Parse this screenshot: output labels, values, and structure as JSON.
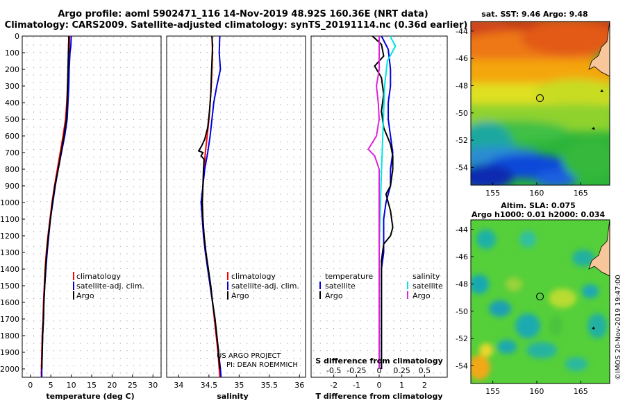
{
  "header": {
    "title_line1": "Argo profile: aoml 5902471_116 14-Nov-2019 48.92S 160.36E (NRT data)",
    "title_line2": "Climatology: CARS2009. Satellite-adjusted climatology: synTS_20191114.nc (0.36d earlier)"
  },
  "colors": {
    "climatology": "#ff0000",
    "satellite": "#0000dd",
    "argo": "#000000",
    "sal_satellite": "#00e5e5",
    "sal_argo": "#dd22dd"
  },
  "depth_axis": {
    "ticks": [
      "0",
      "100",
      "200",
      "300",
      "400",
      "500",
      "600",
      "700",
      "800",
      "900",
      "1000",
      "1100",
      "1200",
      "1300",
      "1400",
      "1500",
      "1600",
      "1700",
      "1800",
      "1900",
      "2000"
    ]
  },
  "chart_data": [
    {
      "type": "line",
      "name": "temperature",
      "xlabel": "temperature (deg C)",
      "xlim": [
        -2,
        32
      ],
      "ylim": [
        2050,
        0
      ],
      "xticks": [
        "0",
        "5",
        "10",
        "15",
        "20",
        "25",
        "30"
      ],
      "xtick_values": [
        0,
        5,
        10,
        15,
        20,
        25,
        30
      ],
      "legend": [
        "climatology",
        "satellite-adj. clim.",
        "Argo"
      ],
      "series": [
        {
          "name": "climatology",
          "color_key": "climatology",
          "points": [
            [
              9.6,
              0
            ],
            [
              9.5,
              100
            ],
            [
              9.3,
              200
            ],
            [
              9.1,
              300
            ],
            [
              8.9,
              400
            ],
            [
              8.6,
              500
            ],
            [
              8.0,
              600
            ],
            [
              7.3,
              700
            ],
            [
              6.6,
              800
            ],
            [
              5.9,
              900
            ],
            [
              5.3,
              1000
            ],
            [
              4.8,
              1100
            ],
            [
              4.3,
              1200
            ],
            [
              3.9,
              1300
            ],
            [
              3.6,
              1400
            ],
            [
              3.4,
              1500
            ],
            [
              3.2,
              1600
            ],
            [
              3.1,
              1700
            ],
            [
              2.9,
              1800
            ],
            [
              2.8,
              1900
            ],
            [
              2.7,
              2000
            ],
            [
              2.7,
              2050
            ]
          ]
        },
        {
          "name": "satellite-adj. clim.",
          "color_key": "satellite",
          "points": [
            [
              10.0,
              0
            ],
            [
              9.9,
              60
            ],
            [
              9.7,
              100
            ],
            [
              9.5,
              200
            ],
            [
              9.4,
              300
            ],
            [
              9.2,
              400
            ],
            [
              9.0,
              500
            ],
            [
              8.4,
              600
            ],
            [
              7.6,
              700
            ],
            [
              6.8,
              800
            ],
            [
              6.1,
              900
            ],
            [
              5.5,
              1000
            ],
            [
              4.9,
              1100
            ],
            [
              4.5,
              1200
            ],
            [
              4.1,
              1300
            ],
            [
              3.8,
              1400
            ],
            [
              3.5,
              1500
            ],
            [
              3.3,
              1600
            ],
            [
              3.2,
              1700
            ],
            [
              3.0,
              1800
            ],
            [
              2.9,
              1900
            ],
            [
              2.8,
              2000
            ],
            [
              2.8,
              2050
            ]
          ]
        },
        {
          "name": "Argo",
          "color_key": "argo",
          "points": [
            [
              9.4,
              0
            ],
            [
              9.3,
              100
            ],
            [
              9.2,
              200
            ],
            [
              9.1,
              300
            ],
            [
              9.0,
              400
            ],
            [
              8.8,
              500
            ],
            [
              8.2,
              600
            ],
            [
              7.5,
              700
            ],
            [
              6.8,
              800
            ],
            [
              6.0,
              900
            ],
            [
              5.4,
              1000
            ],
            [
              4.9,
              1100
            ],
            [
              4.4,
              1200
            ],
            [
              4.0,
              1300
            ],
            [
              3.7,
              1400
            ],
            [
              3.5,
              1500
            ],
            [
              3.3,
              1600
            ],
            [
              3.2,
              1700
            ],
            [
              3.0,
              1800
            ],
            [
              2.9,
              1900
            ],
            [
              2.8,
              2000
            ]
          ]
        }
      ]
    },
    {
      "type": "line",
      "name": "salinity",
      "xlabel": "salinity",
      "xlim": [
        33.8,
        36.1
      ],
      "ylim": [
        2050,
        0
      ],
      "xticks": [
        "34",
        "34.5",
        "35",
        "35.5",
        "36"
      ],
      "xtick_values": [
        34,
        34.5,
        35,
        35.5,
        36
      ],
      "legend": [
        "climatology",
        "satellite-adj. clim.",
        "Argo"
      ],
      "credit_line1": "US ARGO PROJECT",
      "credit_line2": "PI: DEAN ROEMMICH",
      "series": [
        {
          "name": "climatology",
          "color_key": "climatology",
          "points": [
            [
              34.55,
              0
            ],
            [
              34.56,
              100
            ],
            [
              34.55,
              200
            ],
            [
              34.54,
              300
            ],
            [
              34.52,
              400
            ],
            [
              34.5,
              500
            ],
            [
              34.47,
              600
            ],
            [
              34.44,
              700
            ],
            [
              34.42,
              800
            ],
            [
              34.4,
              900
            ],
            [
              34.39,
              1000
            ],
            [
              34.4,
              1100
            ],
            [
              34.42,
              1200
            ],
            [
              34.45,
              1300
            ],
            [
              34.49,
              1400
            ],
            [
              34.52,
              1500
            ],
            [
              34.56,
              1600
            ],
            [
              34.59,
              1700
            ],
            [
              34.62,
              1800
            ],
            [
              34.65,
              1900
            ],
            [
              34.67,
              2000
            ],
            [
              34.68,
              2050
            ]
          ]
        },
        {
          "name": "satellite-adj. clim.",
          "color_key": "satellite",
          "points": [
            [
              34.68,
              0
            ],
            [
              34.67,
              100
            ],
            [
              34.69,
              200
            ],
            [
              34.63,
              300
            ],
            [
              34.58,
              400
            ],
            [
              34.55,
              500
            ],
            [
              34.52,
              600
            ],
            [
              34.48,
              700
            ],
            [
              34.43,
              800
            ],
            [
              34.4,
              900
            ],
            [
              34.37,
              1000
            ],
            [
              34.39,
              1100
            ],
            [
              34.41,
              1200
            ],
            [
              34.44,
              1300
            ],
            [
              34.48,
              1400
            ],
            [
              34.52,
              1500
            ],
            [
              34.56,
              1600
            ],
            [
              34.6,
              1700
            ],
            [
              34.63,
              1800
            ],
            [
              34.66,
              1900
            ],
            [
              34.69,
              2000
            ],
            [
              34.7,
              2050
            ]
          ]
        },
        {
          "name": "Argo",
          "color_key": "argo",
          "points": [
            [
              34.55,
              0
            ],
            [
              34.56,
              60
            ],
            [
              34.55,
              150
            ],
            [
              34.54,
              250
            ],
            [
              34.53,
              350
            ],
            [
              34.51,
              450
            ],
            [
              34.48,
              550
            ],
            [
              34.43,
              620
            ],
            [
              34.38,
              660
            ],
            [
              34.33,
              690
            ],
            [
              34.4,
              700
            ],
            [
              34.37,
              720
            ],
            [
              34.42,
              740
            ],
            [
              34.41,
              800
            ],
            [
              34.4,
              900
            ],
            [
              34.39,
              1000
            ],
            [
              34.4,
              1100
            ],
            [
              34.42,
              1200
            ],
            [
              34.45,
              1300
            ],
            [
              34.49,
              1400
            ],
            [
              34.53,
              1500
            ],
            [
              34.56,
              1600
            ],
            [
              34.6,
              1700
            ],
            [
              34.63,
              1800
            ],
            [
              34.66,
              1900
            ],
            [
              34.68,
              2000
            ]
          ]
        }
      ]
    },
    {
      "type": "line",
      "name": "difference",
      "xlabel": "T difference from climatology",
      "xlim": [
        -3,
        3
      ],
      "ylim": [
        2050,
        0
      ],
      "xticks": [
        "-2",
        "-1",
        "0",
        "1",
        "2"
      ],
      "xtick_values": [
        -2,
        -1,
        0,
        1,
        2
      ],
      "sxlabel": "S difference from climatology",
      "sxticks": [
        "-0.5",
        "-0.25",
        "0",
        "0.25",
        "0.5"
      ],
      "sxtick_values": [
        -0.5,
        -0.25,
        0,
        0.25,
        0.5
      ],
      "legend_temp_title": "temperature",
      "legend_sal_title": "salinity",
      "legend_temp": [
        "satellite",
        "Argo"
      ],
      "legend_sal": [
        "satellite",
        "Argo"
      ],
      "series": [
        {
          "name": "T satellite",
          "color_key": "satellite",
          "points": [
            [
              0.1,
              0
            ],
            [
              0.4,
              80
            ],
            [
              0.5,
              200
            ],
            [
              0.5,
              300
            ],
            [
              0.4,
              400
            ],
            [
              0.4,
              500
            ],
            [
              0.5,
              600
            ],
            [
              0.6,
              700
            ],
            [
              0.5,
              800
            ],
            [
              0.5,
              900
            ],
            [
              0.3,
              1000
            ],
            [
              0.2,
              1100
            ],
            [
              0.2,
              1200
            ],
            [
              0.2,
              1300
            ],
            [
              0.1,
              1400
            ],
            [
              0.1,
              1500
            ],
            [
              0.1,
              1600
            ],
            [
              0.1,
              1700
            ],
            [
              0.1,
              1800
            ],
            [
              0.1,
              1900
            ],
            [
              0.1,
              2000
            ]
          ]
        },
        {
          "name": "T Argo",
          "color_key": "argo",
          "points": [
            [
              -0.3,
              0
            ],
            [
              0.1,
              50
            ],
            [
              0.2,
              120
            ],
            [
              -0.2,
              180
            ],
            [
              0.1,
              250
            ],
            [
              0.2,
              350
            ],
            [
              0.1,
              450
            ],
            [
              0.2,
              550
            ],
            [
              0.5,
              650
            ],
            [
              0.6,
              720
            ],
            [
              0.6,
              800
            ],
            [
              0.5,
              900
            ],
            [
              0.3,
              950
            ],
            [
              0.5,
              1050
            ],
            [
              0.6,
              1150
            ],
            [
              0.5,
              1200
            ],
            [
              0.2,
              1250
            ],
            [
              0.1,
              1350
            ],
            [
              0.1,
              1450
            ],
            [
              0.1,
              1600
            ],
            [
              0.1,
              1800
            ],
            [
              0.1,
              2000
            ]
          ]
        },
        {
          "name": "S satellite",
          "color_key": "sal_satellite",
          "points": [
            [
              0.12,
              0
            ],
            [
              0.18,
              60
            ],
            [
              0.09,
              150
            ],
            [
              0.06,
              300
            ],
            [
              0.05,
              450
            ],
            [
              0.04,
              600
            ],
            [
              0.03,
              750
            ],
            [
              0.02,
              900
            ],
            [
              0.01,
              1100
            ],
            [
              0.0,
              1300
            ],
            [
              0.0,
              1500
            ],
            [
              0.0,
              1700
            ],
            [
              0.0,
              1900
            ],
            [
              0.0,
              2000
            ]
          ]
        },
        {
          "name": "S Argo",
          "color_key": "sal_argo",
          "points": [
            [
              0.0,
              0
            ],
            [
              0.0,
              100
            ],
            [
              0.0,
              200
            ],
            [
              -0.03,
              300
            ],
            [
              -0.01,
              400
            ],
            [
              0.0,
              500
            ],
            [
              -0.03,
              600
            ],
            [
              -0.12,
              680
            ],
            [
              -0.05,
              720
            ],
            [
              0.0,
              800
            ],
            [
              0.0,
              1000
            ],
            [
              0.0,
              1200
            ],
            [
              0.0,
              1400
            ],
            [
              0.0,
              1600
            ],
            [
              0.0,
              1800
            ],
            [
              0.0,
              2000
            ]
          ]
        }
      ]
    },
    {
      "type": "heatmap",
      "name": "sst-map",
      "title": "sat. SST: 9.46 Argo: 9.48",
      "xticks": [
        "155",
        "160",
        "165"
      ],
      "xtick_values": [
        155,
        160,
        165
      ],
      "yticks": [
        "-44",
        "-46",
        "-48",
        "-50",
        "-52",
        "-54"
      ],
      "ytick_values": [
        -44,
        -46,
        -48,
        -50,
        -52,
        -54
      ],
      "xlim": [
        152.5,
        168.3
      ],
      "ylim": [
        -55.3,
        -43.3
      ],
      "float_lon": 160.36,
      "float_lat": -48.92
    },
    {
      "type": "heatmap",
      "name": "sla-map",
      "title_line1": "Altim. SLA: 0.075",
      "title_line2": "Argo h1000: 0.01 h2000: 0.034",
      "xticks": [
        "155",
        "160",
        "165"
      ],
      "xtick_values": [
        155,
        160,
        165
      ],
      "yticks": [
        "-44",
        "-46",
        "-48",
        "-50",
        "-52",
        "-54"
      ],
      "ytick_values": [
        -44,
        -46,
        -48,
        -50,
        -52,
        -54
      ],
      "xlim": [
        152.5,
        168.3
      ],
      "ylim": [
        -55.3,
        -43.3
      ],
      "float_lon": 160.36,
      "float_lat": -48.92,
      "credit": "©IMOS 20-Nov-2019 19:47:00"
    }
  ]
}
